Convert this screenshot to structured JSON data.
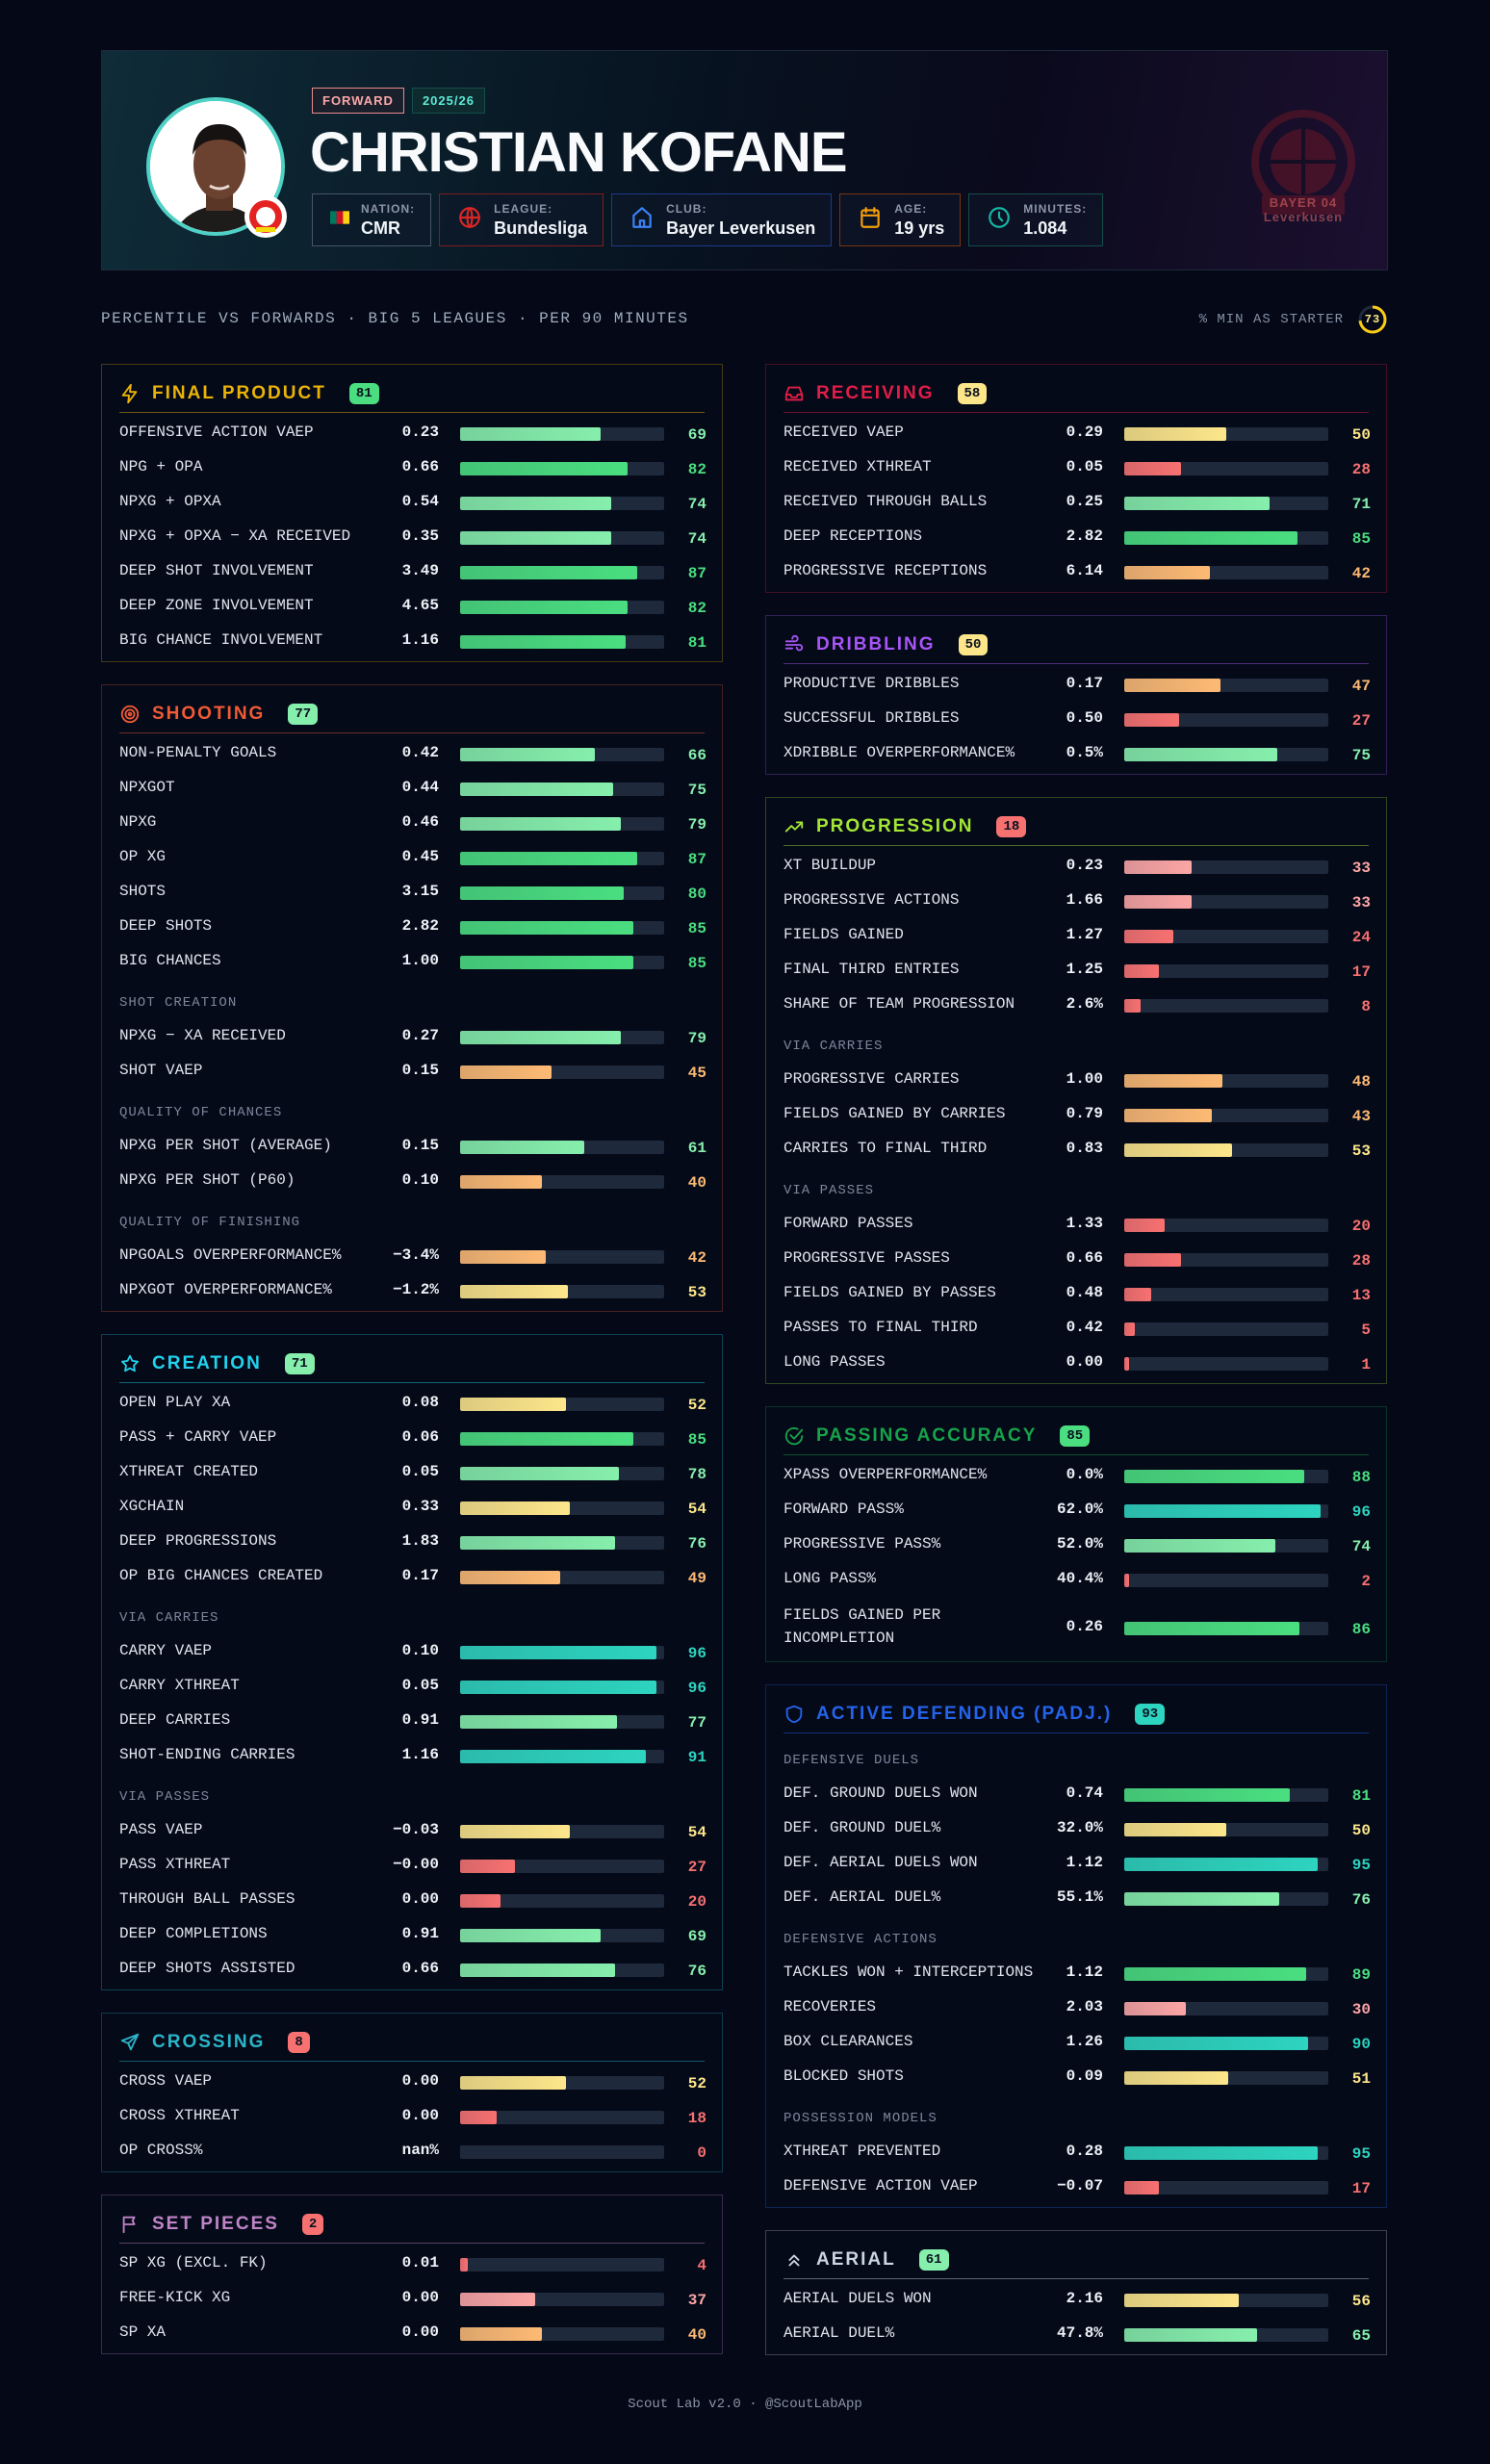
{
  "player": {
    "position": "FORWARD",
    "season": "2025/26",
    "name": "CHRISTIAN KOFANE",
    "info": [
      {
        "label": "NATION:",
        "value": "CMR",
        "icon": "flag-icon",
        "color": "#475569"
      },
      {
        "label": "LEAGUE:",
        "value": "Bundesliga",
        "icon": "globe-icon",
        "color": "#7f1d1d"
      },
      {
        "label": "CLUB:",
        "value": "Bayer Leverkusen",
        "icon": "home-icon",
        "color": "#1e3a8a"
      },
      {
        "label": "AGE:",
        "value": "19 yrs",
        "icon": "calendar-icon",
        "color": "#78350f"
      },
      {
        "label": "MINUTES:",
        "value": "1.084",
        "icon": "clock-icon",
        "color": "#134e4a"
      }
    ],
    "crest_text": "BAYER 04 Leverkusen"
  },
  "subtitle": "PERCENTILE VS FORWARDS · BIG 5 LEAGUES · PER 90 MINUTES",
  "starter": {
    "label": "% MIN AS STARTER",
    "value": 73,
    "color": "#facc15"
  },
  "footer": "Scout Lab v2.0 · @ScoutLabApp",
  "scale_colors": {
    "red": "#f87171",
    "pink": "#fca5a5",
    "orange": "#fdba74",
    "yellow": "#fde68a",
    "lightgreen": "#86efac",
    "green": "#4ade80",
    "teal": "#2dd4bf"
  },
  "columns": [
    [
      {
        "title": "FINAL PRODUCT",
        "score": 81,
        "color": "#eab308",
        "icon": "lightning-icon",
        "groups": [
          {
            "rows": [
              [
                "OFFENSIVE ACTION VAEP",
                "0.23",
                69
              ],
              [
                "NPG + OPA",
                "0.66",
                82
              ],
              [
                "NPXG + OPXA",
                "0.54",
                74
              ],
              [
                "NPXG + OPXA − XA RECEIVED",
                "0.35",
                74
              ],
              [
                "DEEP SHOT INVOLVEMENT",
                "3.49",
                87
              ],
              [
                "DEEP ZONE INVOLVEMENT",
                "4.65",
                82
              ],
              [
                "BIG CHANCE INVOLVEMENT",
                "1.16",
                81
              ]
            ]
          }
        ]
      },
      {
        "title": "SHOOTING",
        "score": 77,
        "color": "#f05a35",
        "icon": "target-icon",
        "groups": [
          {
            "rows": [
              [
                "NON-PENALTY GOALS",
                "0.42",
                66
              ],
              [
                "NPXGOT",
                "0.44",
                75
              ],
              [
                "NPXG",
                "0.46",
                79
              ],
              [
                "OP XG",
                "0.45",
                87
              ],
              [
                "SHOTS",
                "3.15",
                80
              ],
              [
                "DEEP SHOTS",
                "2.82",
                85
              ],
              [
                "BIG CHANCES",
                "1.00",
                85
              ]
            ]
          },
          {
            "label": "SHOT CREATION",
            "rows": [
              [
                "NPXG − XA RECEIVED",
                "0.27",
                79
              ],
              [
                "SHOT VAEP",
                "0.15",
                45
              ]
            ]
          },
          {
            "label": "QUALITY OF CHANCES",
            "rows": [
              [
                "NPXG PER SHOT (AVERAGE)",
                "0.15",
                61
              ],
              [
                "NPXG PER SHOT (P60)",
                "0.10",
                40
              ]
            ]
          },
          {
            "label": "QUALITY OF FINISHING",
            "rows": [
              [
                "NPGOALS OVERPERFORMANCE%",
                "−3.4%",
                42
              ],
              [
                "NPXGOT OVERPERFORMANCE%",
                "−1.2%",
                53
              ]
            ]
          }
        ]
      },
      {
        "title": "CREATION",
        "score": 71,
        "color": "#22d3ee",
        "icon": "star-icon",
        "groups": [
          {
            "rows": [
              [
                "OPEN PLAY XA",
                "0.08",
                52
              ],
              [
                "PASS + CARRY VAEP",
                "0.06",
                85
              ],
              [
                "XTHREAT CREATED",
                "0.05",
                78
              ],
              [
                "XGCHAIN",
                "0.33",
                54
              ],
              [
                "DEEP PROGRESSIONS",
                "1.83",
                76
              ],
              [
                "OP BIG CHANCES CREATED",
                "0.17",
                49
              ]
            ]
          },
          {
            "label": "VIA CARRIES",
            "rows": [
              [
                "CARRY VAEP",
                "0.10",
                96
              ],
              [
                "CARRY XTHREAT",
                "0.05",
                96
              ],
              [
                "DEEP CARRIES",
                "0.91",
                77
              ],
              [
                "SHOT-ENDING CARRIES",
                "1.16",
                91
              ]
            ]
          },
          {
            "label": "VIA PASSES",
            "rows": [
              [
                "PASS VAEP",
                "−0.03",
                54
              ],
              [
                "PASS XTHREAT",
                "−0.00",
                27
              ],
              [
                "THROUGH BALL PASSES",
                "0.00",
                20
              ],
              [
                "DEEP COMPLETIONS",
                "0.91",
                69
              ],
              [
                "DEEP SHOTS ASSISTED",
                "0.66",
                76
              ]
            ]
          }
        ]
      },
      {
        "title": "CROSSING",
        "score": 8,
        "color": "#2bb5c9",
        "icon": "send-icon",
        "groups": [
          {
            "rows": [
              [
                "CROSS VAEP",
                "0.00",
                52
              ],
              [
                "CROSS XTHREAT",
                "0.00",
                18
              ],
              [
                "OP CROSS%",
                "nan%",
                0
              ]
            ]
          }
        ]
      },
      {
        "title": "SET PIECES",
        "score": 2,
        "color": "#c084c8",
        "icon": "flag-icon",
        "groups": [
          {
            "rows": [
              [
                "SP XG (EXCL. FK)",
                "0.01",
                4
              ],
              [
                "FREE-KICK XG",
                "0.00",
                37
              ],
              [
                "SP XA",
                "0.00",
                40
              ]
            ]
          }
        ]
      }
    ],
    [
      {
        "title": "RECEIVING",
        "score": 58,
        "color": "#e11d48",
        "icon": "inbox-icon",
        "groups": [
          {
            "rows": [
              [
                "RECEIVED VAEP",
                "0.29",
                50
              ],
              [
                "RECEIVED XTHREAT",
                "0.05",
                28
              ],
              [
                "RECEIVED THROUGH BALLS",
                "0.25",
                71
              ],
              [
                "DEEP RECEPTIONS",
                "2.82",
                85
              ],
              [
                "PROGRESSIVE RECEPTIONS",
                "6.14",
                42
              ]
            ]
          }
        ]
      },
      {
        "title": "DRIBBLING",
        "score": 50,
        "color": "#a855f7",
        "icon": "wind-icon",
        "groups": [
          {
            "rows": [
              [
                "PRODUCTIVE DRIBBLES",
                "0.17",
                47
              ],
              [
                "SUCCESSFUL DRIBBLES",
                "0.50",
                27
              ],
              [
                "XDRIBBLE OVERPERFORMANCE%",
                "0.5%",
                75
              ]
            ]
          }
        ]
      },
      {
        "title": "PROGRESSION",
        "score": 18,
        "color": "#a3e635",
        "icon": "trending-up-icon",
        "groups": [
          {
            "rows": [
              [
                "XT BUILDUP",
                "0.23",
                33
              ],
              [
                "PROGRESSIVE ACTIONS",
                "1.66",
                33
              ],
              [
                "FIELDS GAINED",
                "1.27",
                24
              ],
              [
                "FINAL THIRD ENTRIES",
                "1.25",
                17
              ],
              [
                "SHARE OF TEAM PROGRESSION",
                "2.6%",
                8
              ]
            ]
          },
          {
            "label": "VIA CARRIES",
            "rows": [
              [
                "PROGRESSIVE CARRIES",
                "1.00",
                48
              ],
              [
                "FIELDS GAINED BY CARRIES",
                "0.79",
                43
              ],
              [
                "CARRIES TO FINAL THIRD",
                "0.83",
                53
              ]
            ]
          },
          {
            "label": "VIA PASSES",
            "rows": [
              [
                "FORWARD PASSES",
                "1.33",
                20
              ],
              [
                "PROGRESSIVE PASSES",
                "0.66",
                28
              ],
              [
                "FIELDS GAINED BY PASSES",
                "0.48",
                13
              ],
              [
                "PASSES TO FINAL THIRD",
                "0.42",
                5
              ],
              [
                "LONG PASSES",
                "0.00",
                1
              ]
            ]
          }
        ]
      },
      {
        "title": "PASSING ACCURACY",
        "score": 85,
        "color": "#16a34a",
        "icon": "check-circle-icon",
        "groups": [
          {
            "rows": [
              [
                "XPASS OVERPERFORMANCE%",
                "0.0%",
                88
              ],
              [
                "FORWARD PASS%",
                "62.0%",
                96
              ],
              [
                "PROGRESSIVE PASS%",
                "52.0%",
                74
              ],
              [
                "LONG PASS%",
                "40.4%",
                2
              ],
              [
                "FIELDS GAINED PER INCOMPLETION",
                "0.26",
                86
              ]
            ]
          }
        ]
      },
      {
        "title": "ACTIVE DEFENDING (PADJ.)",
        "score": 93,
        "color": "#2563eb",
        "icon": "shield-icon",
        "groups": [
          {
            "label": "DEFENSIVE DUELS",
            "rows": [
              [
                "DEF. GROUND DUELS WON",
                "0.74",
                81
              ],
              [
                "DEF. GROUND DUEL%",
                "32.0%",
                50
              ],
              [
                "DEF. AERIAL DUELS WON",
                "1.12",
                95
              ],
              [
                "DEF. AERIAL DUEL%",
                "55.1%",
                76
              ]
            ]
          },
          {
            "label": "DEFENSIVE ACTIONS",
            "rows": [
              [
                "TACKLES WON + INTERCEPTIONS",
                "1.12",
                89
              ],
              [
                "RECOVERIES",
                "2.03",
                30
              ],
              [
                "BOX CLEARANCES",
                "1.26",
                90
              ],
              [
                "BLOCKED SHOTS",
                "0.09",
                51
              ]
            ]
          },
          {
            "label": "POSSESSION MODELS",
            "rows": [
              [
                "XTHREAT PREVENTED",
                "0.28",
                95
              ],
              [
                "DEFENSIVE ACTION VAEP",
                "−0.07",
                17
              ]
            ]
          }
        ]
      },
      {
        "title": "AERIAL",
        "score": 61,
        "color": "#cbd5e1",
        "icon": "chevrons-up-icon",
        "groups": [
          {
            "rows": [
              [
                "AERIAL DUELS WON",
                "2.16",
                56
              ],
              [
                "AERIAL DUEL%",
                "47.8%",
                65
              ]
            ]
          }
        ]
      }
    ]
  ]
}
